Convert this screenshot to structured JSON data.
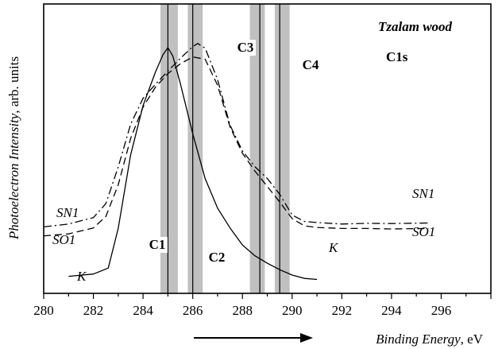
{
  "chart_data": {
    "type": "line",
    "title": "",
    "annotation_title": "Tzalam wood",
    "annotation_subtitle": "C1s",
    "xlabel": "Binding Energy",
    "xlabel_unit": ", eV",
    "ylabel": "Photoelectron Intensity",
    "ylabel_unit": ", arb. units",
    "xlim": [
      280,
      298
    ],
    "ylim": [
      0,
      1
    ],
    "x_ticks": [
      280,
      282,
      284,
      286,
      288,
      290,
      292,
      294,
      296
    ],
    "y_ticks_shown": false,
    "grid": false,
    "direction_arrow": "increasing binding energy",
    "components": [
      {
        "name": "C1",
        "center": 285.0,
        "band": [
          284.7,
          285.4
        ]
      },
      {
        "name": "C2",
        "center": 286.0,
        "band": [
          285.8,
          286.4
        ]
      },
      {
        "name": "C3",
        "center": 288.7,
        "band": [
          288.3,
          288.9
        ]
      },
      {
        "name": "C4",
        "center": 289.5,
        "band": [
          289.3,
          289.9
        ]
      }
    ],
    "series": [
      {
        "name": "K",
        "style": "solid",
        "x": [
          281.0,
          282.0,
          282.6,
          283.0,
          283.5,
          284.0,
          284.5,
          284.8,
          285.0,
          285.2,
          285.5,
          286.0,
          286.5,
          287.0,
          287.5,
          288.0,
          288.5,
          289.0,
          289.5,
          290.0,
          290.5,
          291.0
        ],
        "y": [
          0.066,
          0.075,
          0.098,
          0.252,
          0.538,
          0.729,
          0.86,
          0.926,
          0.954,
          0.921,
          0.815,
          0.619,
          0.445,
          0.331,
          0.254,
          0.188,
          0.146,
          0.117,
          0.092,
          0.071,
          0.058,
          0.054
        ]
      },
      {
        "name": "SN1",
        "style": "dash-dot",
        "x": [
          280.0,
          281.0,
          282.0,
          282.5,
          283.0,
          283.5,
          284.0,
          284.5,
          285.0,
          285.5,
          286.0,
          286.2,
          286.5,
          287.0,
          287.5,
          288.0,
          288.5,
          289.0,
          289.5,
          290.0,
          290.5,
          291.0,
          292.0,
          293.0,
          294.0,
          295.5
        ],
        "y": [
          0.258,
          0.269,
          0.294,
          0.348,
          0.49,
          0.657,
          0.757,
          0.812,
          0.863,
          0.912,
          0.958,
          0.97,
          0.952,
          0.83,
          0.653,
          0.553,
          0.492,
          0.446,
          0.385,
          0.304,
          0.279,
          0.275,
          0.269,
          0.272,
          0.271,
          0.273
        ]
      },
      {
        "name": "SO1",
        "style": "dashed",
        "x": [
          280.0,
          281.0,
          282.0,
          282.5,
          283.0,
          283.5,
          284.0,
          284.5,
          285.0,
          285.5,
          286.0,
          286.5,
          287.0,
          287.5,
          288.0,
          288.5,
          289.0,
          289.5,
          290.0,
          290.5,
          291.0,
          292.0,
          293.0,
          294.0,
          295.5
        ],
        "y": [
          0.223,
          0.231,
          0.254,
          0.298,
          0.421,
          0.602,
          0.723,
          0.801,
          0.853,
          0.891,
          0.918,
          0.909,
          0.808,
          0.646,
          0.544,
          0.475,
          0.415,
          0.355,
          0.29,
          0.262,
          0.256,
          0.252,
          0.252,
          0.25,
          0.252
        ]
      }
    ]
  }
}
